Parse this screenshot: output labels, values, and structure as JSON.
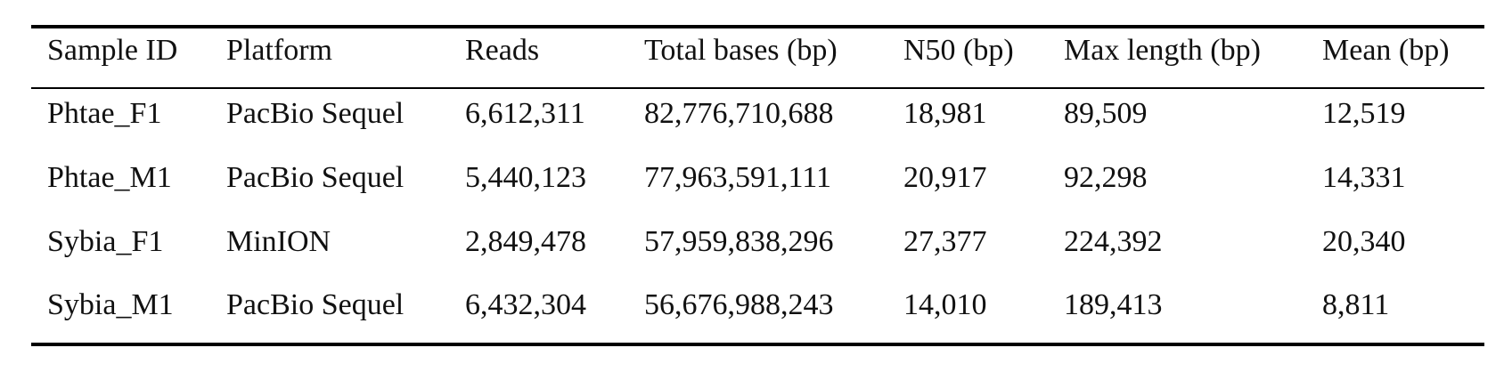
{
  "table": {
    "header": [
      "Sample ID",
      "Platform",
      "Reads",
      "Total bases (bp)",
      "N50 (bp)",
      "Max length (bp)",
      "Mean (bp)"
    ],
    "rows": [
      [
        "Phtae_F1",
        "PacBio Sequel",
        "6,612,311",
        "82,776,710,688",
        "18,981",
        "89,509",
        "12,519"
      ],
      [
        "Phtae_M1",
        "PacBio Sequel",
        "5,440,123",
        "77,963,591,111",
        "20,917",
        "92,298",
        "14,331"
      ],
      [
        "Sybia_F1",
        "MinION",
        "2,849,478",
        "57,959,838,296",
        "27,377",
        "224,392",
        "20,340"
      ],
      [
        "Sybia_M1",
        "PacBio Sequel",
        "6,432,304",
        "56,676,988,243",
        "14,010",
        "189,413",
        "8,811"
      ]
    ]
  }
}
